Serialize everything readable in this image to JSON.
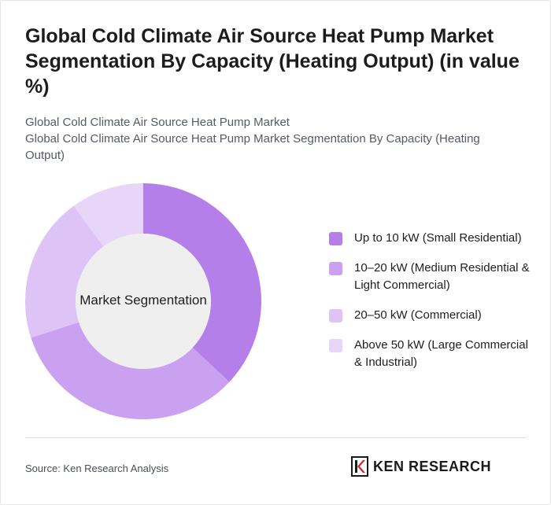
{
  "header": {
    "title": "Global Cold Climate Air Source Heat Pump Market Segmentation By Capacity (Heating Output) (in value %)",
    "subtitle_line1": "Global Cold Climate Air Source Heat Pump Market",
    "subtitle_line2": "Global Cold Climate Air Source Heat Pump Market Segmentation By Capacity (Heating Output)"
  },
  "chart_data": {
    "type": "pie",
    "center_label": "Market Segmentation",
    "categories": [
      "Up to 10 kW (Small Residential)",
      "10–20 kW (Medium Residential & Light Commercial)",
      "20–50 kW (Commercial)",
      "Above 50 kW (Large Commercial & Industrial)"
    ],
    "values": [
      37,
      33,
      20,
      10
    ],
    "colors": [
      "#b57fe9",
      "#c9a1f0",
      "#dec3f6",
      "#e8d6f8"
    ],
    "legend_position": "right"
  },
  "footer": {
    "source": "Source: Ken Research Analysis",
    "logo_text": "KEN RESEARCH",
    "logo_icon": "ken-research-logo-icon"
  }
}
